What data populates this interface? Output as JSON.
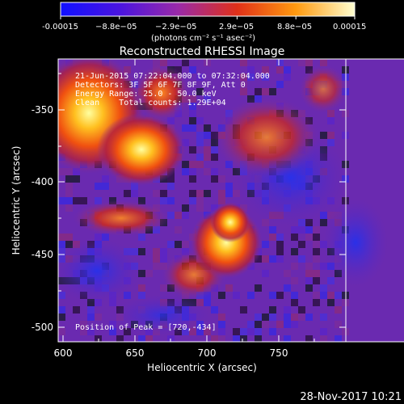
{
  "colorbar": {
    "tick_labels": [
      "-0.00015",
      "−8.8e−05",
      "−2.9e−05",
      "2.9e−05",
      "8.8e−05",
      "0.00015"
    ],
    "unit_label": "(photons cm⁻² s⁻¹ asec⁻²)",
    "colors": [
      "#1010ff",
      "#5a18d8",
      "#9a2aa8",
      "#e03018",
      "#ff9a10",
      "#ffffd0"
    ]
  },
  "image": {
    "title": "Reconstructed RHESSI Image",
    "info_lines": [
      "21-Jun-2015 07:22:04.000 to 07:32:04.000",
      "Detectors: 3F 5F 6F 7F 8F 9F, Att 0",
      "Energy Range: 25.0 - 50.0 keV",
      "Clean    Total counts: 1.29E+04"
    ],
    "peak_label": "Position of Peak = [720,-434]",
    "x_axis": {
      "label": "Heliocentric X (arcsec)",
      "ticks": [
        "600",
        "650",
        "700",
        "750"
      ]
    },
    "y_axis": {
      "label": "Heliocentric Y (arcsec)",
      "ticks": [
        "-350",
        "-400",
        "-450",
        "-500"
      ]
    }
  },
  "footer": {
    "timestamp": "28-Nov-2017 10:21"
  }
}
